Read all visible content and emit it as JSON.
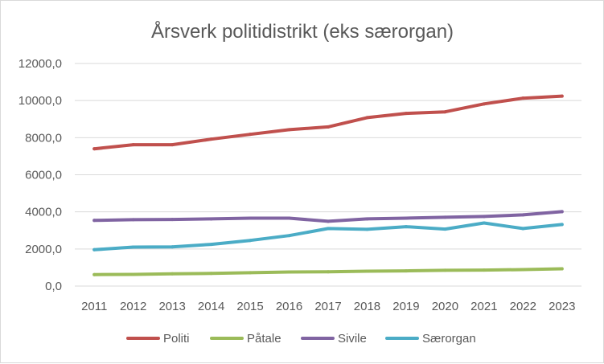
{
  "chart_data": {
    "type": "line",
    "title": "Årsverk politidistrikt (eks særorgan)",
    "xlabel": "",
    "ylabel": "",
    "x": [
      "2011",
      "2012",
      "2013",
      "2014",
      "2015",
      "2016",
      "2017",
      "2018",
      "2019",
      "2020",
      "2021",
      "2022",
      "2023"
    ],
    "ylim": [
      0,
      12000
    ],
    "yticks": [
      0,
      2000,
      4000,
      6000,
      8000,
      10000,
      12000
    ],
    "ytick_labels": [
      "0,0",
      "2000,0",
      "4000,0",
      "6000,0",
      "8000,0",
      "10000,0",
      "12000,0"
    ],
    "grid": true,
    "legend_position": "bottom",
    "series": [
      {
        "name": "Politi",
        "color": "#c0504d",
        "values": [
          7400,
          7620,
          7620,
          7920,
          8180,
          8430,
          8580,
          9080,
          9310,
          9390,
          9820,
          10130,
          10240
        ]
      },
      {
        "name": "Påtale",
        "color": "#9bbb59",
        "values": [
          620,
          630,
          660,
          680,
          720,
          760,
          770,
          800,
          820,
          850,
          860,
          890,
          930
        ]
      },
      {
        "name": "Sivile",
        "color": "#8064a2",
        "values": [
          3540,
          3580,
          3590,
          3620,
          3660,
          3660,
          3490,
          3620,
          3660,
          3710,
          3750,
          3840,
          4010
        ]
      },
      {
        "name": "Særorgan",
        "color": "#4bacc6",
        "values": [
          1960,
          2100,
          2110,
          2250,
          2460,
          2720,
          3100,
          3060,
          3200,
          3070,
          3400,
          3100,
          3320
        ]
      }
    ]
  }
}
